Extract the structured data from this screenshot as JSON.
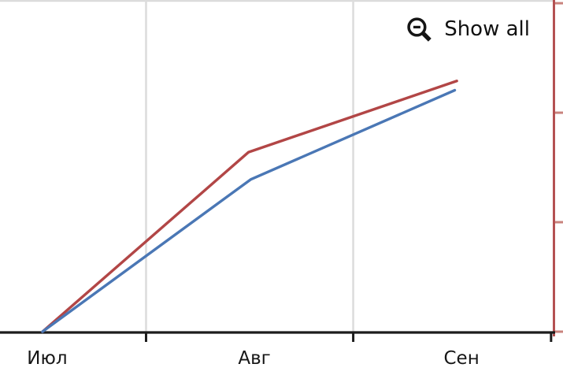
{
  "controls": {
    "show_all_label": "Show all",
    "show_all_icon": "zoom-out-magnifier-minus"
  },
  "chart_data": {
    "type": "line",
    "title": "",
    "xlabel": "",
    "ylabel": "",
    "x_axis": {
      "unit": "months",
      "labels": [
        "Июл",
        "Авг",
        "Сен"
      ],
      "label_positions": [
        0.5,
        1.5,
        2.5
      ],
      "gridline_positions": [
        1,
        2
      ],
      "tick_positions": [
        1,
        2,
        2.955
      ],
      "xlim": [
        0.295,
        2.967
      ],
      "axis_color": "#1c1c1c"
    },
    "y_axis": {
      "side": "right",
      "tick_values": [
        0,
        1,
        2,
        3
      ],
      "tick_labels_visible": false,
      "ylim": [
        0,
        3.015
      ],
      "axis_color": "#b45152",
      "tick_color": "#c9837d"
    },
    "grid": {
      "vertical": true,
      "horizontal": false,
      "color": "#dddddd",
      "top_border_color": "#d9d9d9"
    },
    "legend": "none",
    "series": [
      {
        "name": "red-series",
        "color": "#b24646",
        "points": [
          {
            "x": 0.5,
            "y": 0
          },
          {
            "x": 1.495,
            "y": 1.64
          },
          {
            "x": 2.5,
            "y": 2.29
          }
        ]
      },
      {
        "name": "blue-series",
        "color": "#4a77b5",
        "points": [
          {
            "x": 0.5,
            "y": 0
          },
          {
            "x": 1.505,
            "y": 1.39
          },
          {
            "x": 2.49,
            "y": 2.205
          }
        ]
      }
    ]
  }
}
